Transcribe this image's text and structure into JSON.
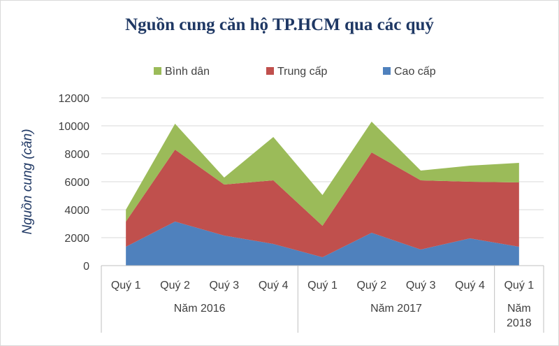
{
  "chart_data": {
    "type": "area",
    "stacked": true,
    "title": "Nguồn cung căn hộ TP.HCM qua các quý",
    "ylabel": "Nguồn cung (căn)",
    "ylim": [
      0,
      12000
    ],
    "yticks": [
      "0",
      "2000",
      "4000",
      "6000",
      "8000",
      "10000",
      "12000"
    ],
    "categories": [
      "Quý 1",
      "Quý 2",
      "Quý 3",
      "Quý 4",
      "Quý 1",
      "Quý 2",
      "Quý 3",
      "Quý 4",
      "Quý 1"
    ],
    "groups": [
      {
        "label": "Năm 2016",
        "count": 4
      },
      {
        "label": "Năm 2017",
        "count": 4
      },
      {
        "label": "Năm 2018",
        "count": 1
      }
    ],
    "grid": true,
    "legend_position": "top",
    "series": [
      {
        "name": "Cao cấp",
        "color": "#4f81bd",
        "values": [
          1350,
          3150,
          2150,
          1550,
          600,
          2350,
          1150,
          1950,
          1350
        ]
      },
      {
        "name": "Trung cấp",
        "color": "#c0504d",
        "values": [
          1800,
          5150,
          3650,
          4550,
          2250,
          5750,
          4950,
          4050,
          4600
        ]
      },
      {
        "name": "Bình dân",
        "color": "#9bbb59",
        "values": [
          850,
          1850,
          500,
          3100,
          2200,
          2200,
          700,
          1150,
          1400
        ]
      }
    ],
    "legend_order": [
      "Bình dân",
      "Trung cấp",
      "Cao cấp"
    ]
  }
}
